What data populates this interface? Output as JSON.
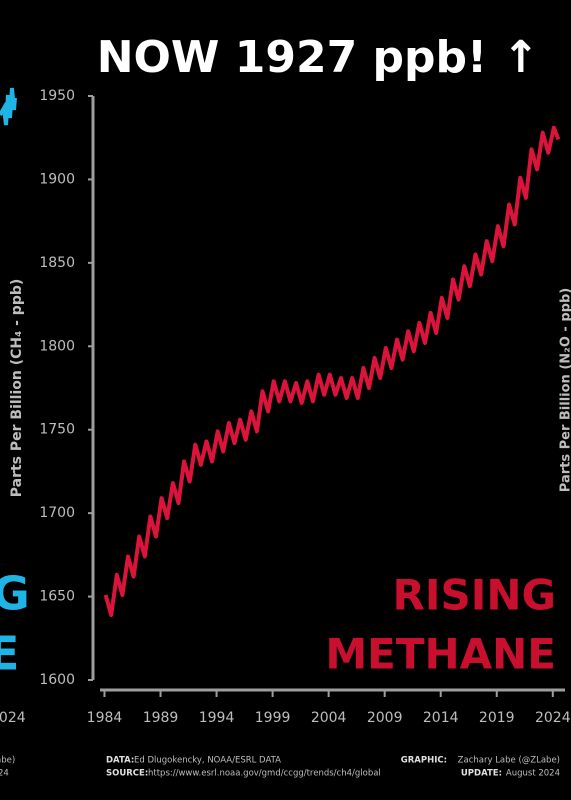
{
  "chart_data": {
    "type": "line",
    "title": "NOW 1927 ppb! ↑",
    "y_label": "Parts Per Billion (CH₄ - ppb)",
    "annotation": [
      "RISING",
      "METHANE"
    ],
    "color": "#dc143c",
    "x": [
      1984.1,
      1984.6,
      1985.1,
      1985.6,
      1986.1,
      1986.6,
      1987.1,
      1987.6,
      1988.1,
      1988.6,
      1989.1,
      1989.6,
      1990.1,
      1990.6,
      1991.1,
      1991.6,
      1992.1,
      1992.6,
      1993.1,
      1993.6,
      1994.1,
      1994.6,
      1995.1,
      1995.6,
      1996.1,
      1996.6,
      1997.1,
      1997.6,
      1998.1,
      1998.6,
      1999.1,
      1999.6,
      2000.1,
      2000.6,
      2001.1,
      2001.6,
      2002.1,
      2002.6,
      2003.1,
      2003.6,
      2004.1,
      2004.6,
      2005.1,
      2005.6,
      2006.1,
      2006.6,
      2007.1,
      2007.6,
      2008.1,
      2008.6,
      2009.1,
      2009.6,
      2010.1,
      2010.6,
      2011.1,
      2011.6,
      2012.1,
      2012.6,
      2013.1,
      2013.6,
      2014.1,
      2014.6,
      2015.1,
      2015.6,
      2016.1,
      2016.6,
      2017.1,
      2017.6,
      2018.1,
      2018.6,
      2019.1,
      2019.6,
      2020.1,
      2020.6,
      2021.1,
      2021.6,
      2022.1,
      2022.6,
      2023.1,
      2023.6,
      2024.1,
      2024.5
    ],
    "values": [
      1651,
      1639,
      1663,
      1651,
      1674,
      1662,
      1686,
      1674,
      1698,
      1686,
      1709,
      1697,
      1718,
      1706,
      1731,
      1719,
      1741,
      1729,
      1743,
      1731,
      1749,
      1737,
      1754,
      1742,
      1756,
      1744,
      1761,
      1749,
      1773,
      1761,
      1779,
      1767,
      1779,
      1767,
      1778,
      1766,
      1779,
      1767,
      1783,
      1771,
      1783,
      1771,
      1781,
      1769,
      1781,
      1769,
      1787,
      1775,
      1793,
      1781,
      1799,
      1787,
      1804,
      1792,
      1809,
      1797,
      1814,
      1802,
      1820,
      1808,
      1829,
      1817,
      1840,
      1828,
      1848,
      1836,
      1855,
      1843,
      1863,
      1851,
      1872,
      1860,
      1885,
      1873,
      1901,
      1889,
      1918,
      1906,
      1928,
      1916,
      1931,
      1924
    ],
    "xlim": [
      1983.6,
      2025
    ],
    "ylim": [
      1600,
      1950
    ],
    "xticks": [
      1984,
      1989,
      1994,
      1999,
      2004,
      2009,
      2014,
      2019,
      2024
    ],
    "yticks": [
      1600,
      1650,
      1700,
      1750,
      1800,
      1850,
      1900,
      1950
    ],
    "footer": {
      "data_label": "DATA:",
      "data_text": "Ed Dlugokencky, NOAA/ESRL DATA",
      "source_label": "SOURCE:",
      "source_text": "https://www.esrl.noaa.gov/gmd/ccgg/trends/ch4/global",
      "graphic_label": "GRAPHIC:",
      "graphic_text": "Zachary Labe (@ZLabe)",
      "update_label": "UPDATE:",
      "update_text": "August 2024"
    },
    "neighbor_fragments": {
      "left_big": [
        "G",
        "E"
      ],
      "left_year": "2024",
      "left_footer": [
        "abe)",
        "24"
      ],
      "right_axis_label": "Parts Per Billion (N₂O - ppb)"
    }
  }
}
